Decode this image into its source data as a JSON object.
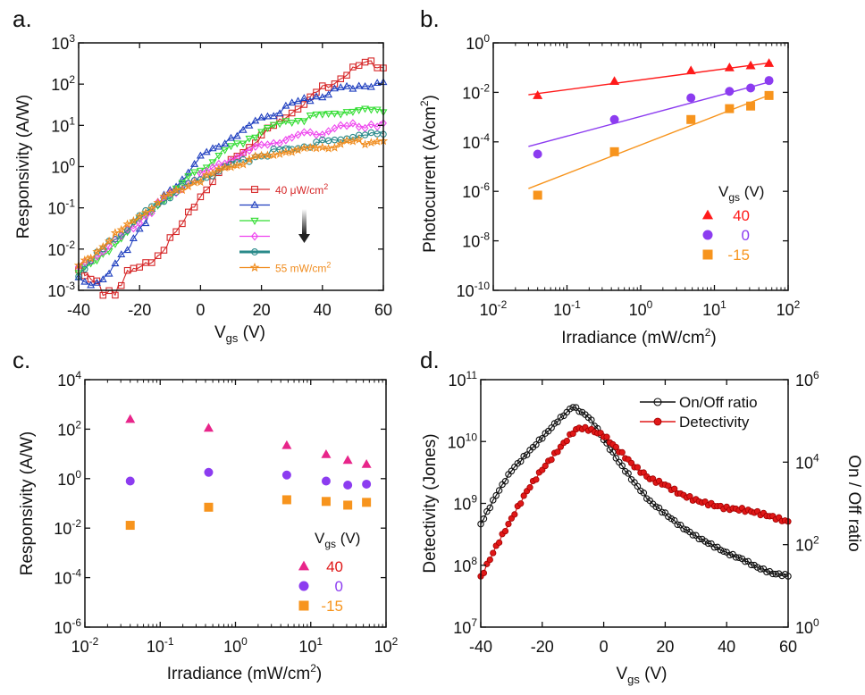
{
  "chart_data": [
    {
      "id": "a",
      "panel_label": "a.",
      "type": "line",
      "xlabel": "V",
      "xlabel_sub": "gs",
      "xlabel_unit": " (V)",
      "ylabel": "Responsivity (A/W)",
      "xlim": [
        -40,
        60
      ],
      "ylim_log10": [
        -3,
        3
      ],
      "y_scale": "log",
      "x_ticks": [
        -40,
        -20,
        0,
        20,
        40,
        60
      ],
      "x_tick_labels": [
        "-40",
        "-20",
        "0",
        "20",
        "40",
        "60"
      ],
      "y_ticks_log10": [
        -3,
        -2,
        -1,
        0,
        1,
        2,
        3
      ],
      "y_tick_bases": [
        "10",
        "10",
        "10",
        "10",
        "10",
        "10",
        "10"
      ],
      "y_tick_exps": [
        "-3",
        "-2",
        "-1",
        "0",
        "1",
        "2",
        "3"
      ],
      "legend_first": "40 μW/cm",
      "legend_last": "55 mW/cm",
      "legend_sup": "2",
      "series": [
        {
          "color": "#d62728",
          "marker": "square",
          "points": [
            [
              -40,
              -2.5
            ],
            [
              -35,
              -2.9
            ],
            [
              -30,
              -3.0
            ],
            [
              -25,
              -2.8
            ],
            [
              -20,
              -2.5
            ],
            [
              -15,
              -2.2
            ],
            [
              -10,
              -1.8
            ],
            [
              -5,
              -1.3
            ],
            [
              0,
              -0.7
            ],
            [
              5,
              -0.25
            ],
            [
              10,
              0.15
            ],
            [
              20,
              0.75
            ],
            [
              30,
              1.35
            ],
            [
              40,
              1.9
            ],
            [
              50,
              2.35
            ],
            [
              55,
              2.5
            ],
            [
              60,
              2.45
            ]
          ]
        },
        {
          "color": "#1f3fbf",
          "marker": "triangle",
          "points": [
            [
              -40,
              -2.7
            ],
            [
              -35,
              -2.85
            ],
            [
              -30,
              -2.6
            ],
            [
              -25,
              -2.1
            ],
            [
              -20,
              -1.5
            ],
            [
              -15,
              -1.0
            ],
            [
              -10,
              -0.6
            ],
            [
              -5,
              -0.2
            ],
            [
              0,
              0.2
            ],
            [
              10,
              0.7
            ],
            [
              20,
              1.15
            ],
            [
              30,
              1.5
            ],
            [
              40,
              1.75
            ],
            [
              50,
              1.95
            ],
            [
              60,
              2.0
            ]
          ]
        },
        {
          "color": "#33dd33",
          "marker": "triangle-down",
          "points": [
            [
              -40,
              -2.5
            ],
            [
              -35,
              -2.4
            ],
            [
              -30,
              -2.0
            ],
            [
              -20,
              -1.3
            ],
            [
              -10,
              -0.65
            ],
            [
              0,
              -0.05
            ],
            [
              10,
              0.45
            ],
            [
              20,
              0.85
            ],
            [
              30,
              1.1
            ],
            [
              40,
              1.25
            ],
            [
              50,
              1.35
            ],
            [
              60,
              1.4
            ]
          ]
        },
        {
          "color": "#ee44ee",
          "marker": "diamond",
          "points": [
            [
              -40,
              -2.45
            ],
            [
              -30,
              -1.95
            ],
            [
              -20,
              -1.3
            ],
            [
              -10,
              -0.7
            ],
            [
              0,
              -0.2
            ],
            [
              10,
              0.2
            ],
            [
              20,
              0.5
            ],
            [
              30,
              0.7
            ],
            [
              40,
              0.85
            ],
            [
              50,
              0.98
            ],
            [
              60,
              1.05
            ]
          ]
        },
        {
          "color": "#2a8a8a",
          "marker": "circle",
          "points": [
            [
              -40,
              -2.6
            ],
            [
              -30,
              -1.85
            ],
            [
              -20,
              -1.25
            ],
            [
              -10,
              -0.7
            ],
            [
              0,
              -0.3
            ],
            [
              10,
              0.05
            ],
            [
              20,
              0.3
            ],
            [
              30,
              0.45
            ],
            [
              40,
              0.58
            ],
            [
              50,
              0.72
            ],
            [
              60,
              0.8
            ]
          ]
        },
        {
          "color": "#f08c1e",
          "marker": "star",
          "points": [
            [
              -40,
              -2.4
            ],
            [
              -30,
              -1.8
            ],
            [
              -20,
              -1.2
            ],
            [
              -10,
              -0.7
            ],
            [
              0,
              -0.3
            ],
            [
              10,
              0.0
            ],
            [
              20,
              0.25
            ],
            [
              30,
              0.38
            ],
            [
              40,
              0.48
            ],
            [
              50,
              0.58
            ],
            [
              60,
              0.65
            ]
          ]
        }
      ]
    },
    {
      "id": "b",
      "panel_label": "b.",
      "type": "scatter",
      "xlabel": "Irradiance (mW/cm",
      "xlabel_sup": "2",
      "xlabel_tail": ")",
      "ylabel": "Photocurrent (A/cm",
      "ylabel_sup": "2",
      "ylabel_tail": ")",
      "x_scale": "log",
      "y_scale": "log",
      "xlim_log10": [
        -2,
        2
      ],
      "ylim_log10": [
        -10,
        0
      ],
      "x_ticks_log10": [
        -2,
        -1,
        0,
        1,
        2
      ],
      "x_tick_exps": [
        "-2",
        "-1",
        "0",
        "1",
        "2"
      ],
      "y_ticks_log10": [
        -10,
        -8,
        -6,
        -4,
        -2,
        0
      ],
      "y_tick_exps": [
        "-10",
        "-8",
        "-6",
        "-4",
        "-2",
        "0"
      ],
      "tick_base": "10",
      "legend_title": "V",
      "legend_title_sub": "gs",
      "legend_title_unit": " (V)",
      "x": [
        0.04,
        0.44,
        4.8,
        16,
        31,
        55
      ],
      "series": [
        {
          "name": "40",
          "color": "#ff1a1a",
          "marker": "triangle",
          "values": [
            0.0075,
            0.028,
            0.075,
            0.1,
            0.12,
            0.15
          ],
          "fit": [
            [
              0.03,
              0.008
            ],
            [
              60,
              0.16
            ]
          ]
        },
        {
          "name": "0",
          "color": "#8c3cf0",
          "marker": "circle",
          "values": [
            3.2e-05,
            0.0008,
            0.006,
            0.011,
            0.015,
            0.03
          ],
          "fit": [
            [
              0.03,
              6.5e-05
            ],
            [
              60,
              0.028
            ]
          ]
        },
        {
          "name": "-15",
          "color": "#f7941d",
          "marker": "square",
          "values": [
            7e-07,
            4e-05,
            0.0008,
            0.0022,
            0.0028,
            0.0075
          ],
          "fit": [
            [
              0.03,
              1.3e-06
            ],
            [
              60,
              0.0085
            ]
          ]
        }
      ]
    },
    {
      "id": "c",
      "panel_label": "c.",
      "type": "scatter",
      "xlabel": "Irradiance (mW/cm",
      "xlabel_sup": "2",
      "xlabel_tail": ")",
      "ylabel": "Responsivity (A/W)",
      "x_scale": "log",
      "y_scale": "log",
      "xlim_log10": [
        -2,
        2
      ],
      "ylim_log10": [
        -6,
        4
      ],
      "x_ticks_log10": [
        -2,
        -1,
        0,
        1,
        2
      ],
      "x_tick_exps": [
        "-2",
        "-1",
        "0",
        "1",
        "2"
      ],
      "y_ticks_log10": [
        -6,
        -4,
        -2,
        0,
        2,
        4
      ],
      "y_tick_exps": [
        "-6",
        "-4",
        "-2",
        "0",
        "2",
        "4"
      ],
      "tick_base": "10",
      "legend_title": "V",
      "legend_title_sub": "gs",
      "legend_title_unit": " (V)",
      "x": [
        0.04,
        0.44,
        4.8,
        16,
        31,
        55
      ],
      "series": [
        {
          "name": "40",
          "color": "#e8258a",
          "marker": "triangle",
          "values": [
            250,
            110,
            22,
            9.5,
            5.5,
            3.8
          ]
        },
        {
          "name": "0",
          "color": "#8c3cf0",
          "marker": "circle",
          "values": [
            0.8,
            1.8,
            1.4,
            0.8,
            0.55,
            0.6
          ]
        },
        {
          "name": "-15",
          "color": "#f7941d",
          "marker": "square",
          "values": [
            0.013,
            0.07,
            0.14,
            0.12,
            0.085,
            0.11
          ]
        }
      ]
    },
    {
      "id": "d",
      "panel_label": "d.",
      "type": "line",
      "xlabel": "V",
      "xlabel_sub": "gs",
      "xlabel_unit": " (V)",
      "ylabel": "Detectivity (Jones)",
      "ylabel_right": "On / Off ratio",
      "xlim": [
        -40,
        60
      ],
      "x_ticks": [
        -40,
        -20,
        0,
        20,
        40,
        60
      ],
      "x_tick_labels": [
        "-40",
        "-20",
        "0",
        "20",
        "40",
        "60"
      ],
      "y_left_log10": [
        7,
        11
      ],
      "y_left_ticks_log10": [
        7,
        8,
        9,
        10,
        11
      ],
      "y_left_exps": [
        "7",
        "8",
        "9",
        "10",
        "11"
      ],
      "y_right_log10": [
        0,
        6
      ],
      "y_right_ticks_log10": [
        0,
        2,
        4,
        6
      ],
      "y_right_exps": [
        "0",
        "2",
        "4",
        "6"
      ],
      "tick_base": "10",
      "series": [
        {
          "name": "On/Off ratio",
          "axis": "right",
          "color": "#111111",
          "marker": "open-circle",
          "points": [
            [
              -40,
              2.5
            ],
            [
              -35,
              3.2
            ],
            [
              -30,
              3.8
            ],
            [
              -25,
              4.2
            ],
            [
              -20,
              4.6
            ],
            [
              -15,
              5.0
            ],
            [
              -10,
              5.35
            ],
            [
              -8,
              5.25
            ],
            [
              -5,
              5.1
            ],
            [
              -2,
              4.8
            ],
            [
              0,
              4.55
            ],
            [
              5,
              4.0
            ],
            [
              10,
              3.5
            ],
            [
              15,
              3.05
            ],
            [
              20,
              2.75
            ],
            [
              25,
              2.45
            ],
            [
              30,
              2.2
            ],
            [
              35,
              2.0
            ],
            [
              40,
              1.8
            ],
            [
              45,
              1.65
            ],
            [
              50,
              1.45
            ],
            [
              55,
              1.3
            ],
            [
              60,
              1.25
            ]
          ]
        },
        {
          "name": "Detectivity",
          "axis": "left",
          "color": "#e01818",
          "marker": "filled-circle",
          "points": [
            [
              -40,
              7.8
            ],
            [
              -35,
              8.3
            ],
            [
              -30,
              8.75
            ],
            [
              -25,
              9.2
            ],
            [
              -20,
              9.55
            ],
            [
              -15,
              9.85
            ],
            [
              -10,
              10.15
            ],
            [
              -8,
              10.22
            ],
            [
              -5,
              10.2
            ],
            [
              0,
              10.1
            ],
            [
              5,
              9.85
            ],
            [
              10,
              9.6
            ],
            [
              15,
              9.4
            ],
            [
              20,
              9.3
            ],
            [
              25,
              9.15
            ],
            [
              30,
              9.05
            ],
            [
              35,
              8.98
            ],
            [
              40,
              8.92
            ],
            [
              45,
              8.9
            ],
            [
              50,
              8.85
            ],
            [
              55,
              8.78
            ],
            [
              60,
              8.7
            ]
          ]
        }
      ]
    }
  ]
}
